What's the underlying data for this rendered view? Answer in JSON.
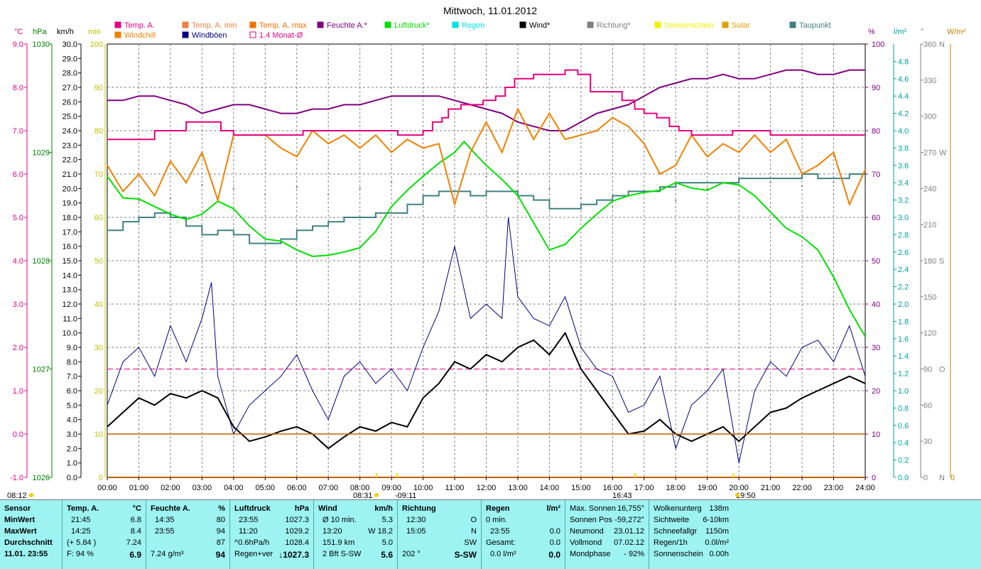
{
  "title": "Mittwoch, 11.01.2012",
  "legend": [
    {
      "label": "Temp. A.",
      "color": "#e6007e"
    },
    {
      "label": "Temp. A. min",
      "color": "#f08040"
    },
    {
      "label": "Temp. A. max",
      "color": "#f07000"
    },
    {
      "label": "Feuchte A.*",
      "color": "#800080"
    },
    {
      "label": "Luftdruck*",
      "color": "#00e000"
    },
    {
      "label": "Regen",
      "color": "#00e0e0"
    },
    {
      "label": "Wind*",
      "color": "#000000"
    },
    {
      "label": "Richtung*",
      "color": "#808080"
    },
    {
      "label": "Sonnenschein",
      "color": "#f0f000"
    },
    {
      "label": "Solar",
      "color": "#e0a000"
    },
    {
      "label": "Taupunkt",
      "color": "#408080"
    },
    {
      "label": "Windchill",
      "color": "#f08000"
    },
    {
      "label": "Windböen",
      "color": "#000080"
    },
    {
      "label": "1.4 Monat-Ø",
      "color": "#e6007e"
    }
  ],
  "axis_units": {
    "temp": "°C",
    "hpa": "hPa",
    "kmh": "km/h",
    "min": "min",
    "pct": "%",
    "rain": "l/m²",
    "deg": "°",
    "solar": "W/m²"
  },
  "axes": {
    "temp": [
      "9.0",
      "8.0",
      "7.0",
      "6.0",
      "5.0",
      "4.0",
      "3.0",
      "2.0",
      "1.0",
      "0.0",
      "-1.0"
    ],
    "hpa": [
      "1030",
      "1029",
      "1028",
      "1027",
      "1026"
    ],
    "kmh": [
      "30.0",
      "29.0",
      "28.0",
      "27.0",
      "26.0",
      "25.0",
      "24.0",
      "23.0",
      "22.0",
      "21.0",
      "20.0",
      "19.0",
      "18.0",
      "17.0",
      "16.0",
      "15.0",
      "14.0",
      "13.0",
      "12.0",
      "11.0",
      "10.0",
      "9.0",
      "8.0",
      "7.0",
      "6.0",
      "5.0",
      "4.0",
      "3.0",
      "2.0",
      "1.0",
      "0.0"
    ],
    "min": [
      "100",
      "90",
      "80",
      "70",
      "60",
      "50",
      "40",
      "30",
      "20",
      "10",
      "0"
    ],
    "pct": [
      "100",
      "90",
      "80",
      "70",
      "60",
      "50",
      "40",
      "30",
      "20",
      "10",
      "0"
    ],
    "rain": [
      "4.8",
      "4.6",
      "4.4",
      "4.2",
      "4.0",
      "3.8",
      "3.6",
      "3.4",
      "3.2",
      "3.0",
      "2.8",
      "2.6",
      "2.4",
      "2.2",
      "2.0",
      "1.8",
      "1.6",
      "1.4",
      "1.2",
      "1.0",
      "0.8",
      "0.6",
      "0.4",
      "0.2",
      "0.0"
    ],
    "deg": [
      "360",
      "330",
      "300",
      "270",
      "240",
      "210",
      "180",
      "150",
      "120",
      "90",
      "60",
      "30",
      "0"
    ],
    "deg_dir": {
      "360": "N",
      "270": "W",
      "180": "S",
      "90": "O",
      "0": "N"
    },
    "solar_zero": "0",
    "x": [
      "00:00",
      "01:00",
      "02:00",
      "03:00",
      "04:00",
      "05:00",
      "06:00",
      "07:00",
      "08:00",
      "09:00",
      "10:00",
      "11:00",
      "12:00",
      "13:00",
      "14:00",
      "15:00",
      "16:00",
      "17:00",
      "18:00",
      "19:00",
      "20:00",
      "21:00",
      "22:00",
      "23:00",
      "24:00"
    ]
  },
  "time_marks": {
    "sunrise": "08:12",
    "dawn": "08:31",
    "noon_mark": "09:11",
    "day": "16:43",
    "sunset": "19:50"
  },
  "chart_data": {
    "type": "line",
    "title": "Mittwoch, 11.01.2012",
    "x_unit": "hours",
    "series": [
      {
        "name": "Temp. A.",
        "unit": "°C",
        "color": "#e6007e",
        "x": [
          0,
          1.2,
          1.5,
          2.5,
          3.6,
          4.0,
          6.2,
          7.5,
          8.9,
          9.2,
          9.5,
          10.0,
          10.3,
          10.6,
          10.8,
          11.2,
          11.5,
          11.9,
          12.3,
          12.6,
          12.9,
          13.2,
          13.5,
          14.0,
          14.5,
          14.9,
          15.3,
          15.6,
          16.3,
          16.7,
          17.0,
          17.4,
          17.8,
          18.1,
          18.5,
          18.9,
          19.4,
          19.8,
          20.5,
          21.0,
          21.5,
          22.0,
          23.0,
          24.0
        ],
        "values": [
          6.8,
          6.8,
          7.0,
          7.2,
          7.0,
          6.9,
          7.0,
          7.0,
          7.0,
          6.9,
          6.9,
          7.0,
          7.2,
          7.3,
          7.5,
          7.6,
          7.6,
          7.7,
          7.8,
          8.0,
          8.2,
          8.2,
          8.3,
          8.3,
          8.4,
          8.3,
          7.9,
          7.9,
          7.7,
          7.5,
          7.4,
          7.3,
          7.1,
          7.0,
          6.9,
          6.9,
          6.9,
          7.0,
          7.0,
          6.9,
          6.9,
          6.9,
          6.9,
          6.9
        ]
      },
      {
        "name": "Feuchte A.*",
        "unit": "%",
        "color": "#800080",
        "x": [
          0,
          0.5,
          1.0,
          1.5,
          2.0,
          2.5,
          3.0,
          3.5,
          4.0,
          4.5,
          5.0,
          5.5,
          6.0,
          6.5,
          7.0,
          7.5,
          8.0,
          8.5,
          9.0,
          9.5,
          10.0,
          10.5,
          11.0,
          11.5,
          12.0,
          12.5,
          13.0,
          13.5,
          14.0,
          14.5,
          15.0,
          15.5,
          16.0,
          16.5,
          17.0,
          17.5,
          18.0,
          18.5,
          19.0,
          19.5,
          20.0,
          20.5,
          21.0,
          21.5,
          22.0,
          22.5,
          23.0,
          23.5,
          24.0
        ],
        "values": [
          87,
          87,
          88,
          88,
          87,
          86,
          84,
          85,
          86,
          86,
          85,
          84,
          84,
          85,
          85,
          86,
          86,
          87,
          88,
          88,
          88,
          88,
          87,
          86,
          85,
          84,
          82,
          81,
          80,
          80,
          82,
          84,
          85,
          86,
          88,
          90,
          91,
          92,
          92,
          93,
          92,
          92,
          93,
          94,
          94,
          93,
          93,
          94,
          94
        ]
      },
      {
        "name": "Luftdruck*",
        "unit": "hPa",
        "color": "#00e000",
        "x": [
          0,
          0.5,
          1.0,
          1.5,
          2.0,
          2.5,
          3.0,
          3.5,
          4.0,
          4.5,
          5.0,
          5.5,
          6.0,
          6.5,
          7.0,
          7.5,
          8.0,
          8.5,
          9.0,
          9.5,
          10.0,
          10.5,
          11.0,
          11.3,
          11.7,
          12.0,
          12.5,
          13.0,
          13.5,
          14.0,
          14.5,
          15.0,
          15.5,
          16.0,
          16.5,
          17.0,
          17.5,
          18.0,
          18.5,
          19.0,
          19.5,
          20.0,
          20.5,
          21.0,
          21.5,
          22.0,
          22.5,
          23.0,
          23.5,
          24.0
        ],
        "values": [
          1028.78,
          1028.58,
          1028.57,
          1028.5,
          1028.43,
          1028.38,
          1028.43,
          1028.55,
          1028.48,
          1028.32,
          1028.2,
          1028.18,
          1028.1,
          1028.04,
          1028.05,
          1028.08,
          1028.12,
          1028.27,
          1028.5,
          1028.65,
          1028.78,
          1028.9,
          1029.0,
          1029.1,
          1028.97,
          1028.88,
          1028.75,
          1028.6,
          1028.35,
          1028.1,
          1028.15,
          1028.3,
          1028.43,
          1028.55,
          1028.6,
          1028.63,
          1028.65,
          1028.72,
          1028.67,
          1028.65,
          1028.72,
          1028.7,
          1028.6,
          1028.45,
          1028.3,
          1028.22,
          1028.1,
          1027.85,
          1027.55,
          1027.3
        ]
      },
      {
        "name": "Taupunkt",
        "unit": "°C",
        "color": "#408080",
        "x": [
          0,
          0.5,
          1.0,
          1.5,
          2.0,
          2.5,
          3.0,
          3.5,
          4.0,
          4.5,
          5.0,
          5.5,
          6.0,
          6.5,
          7.0,
          7.5,
          8.0,
          8.5,
          9.0,
          9.5,
          10.0,
          10.5,
          11.0,
          11.5,
          12.0,
          12.5,
          13.0,
          13.5,
          14.0,
          14.5,
          15.0,
          15.5,
          16.0,
          16.5,
          17.0,
          17.5,
          18.0,
          18.5,
          19.0,
          19.5,
          20.0,
          20.5,
          21.0,
          21.5,
          22.0,
          22.5,
          23.0,
          23.5,
          24.0
        ],
        "values": [
          4.7,
          4.9,
          5.0,
          5.1,
          5.0,
          4.8,
          4.6,
          4.7,
          4.6,
          4.4,
          4.4,
          4.5,
          4.7,
          4.8,
          4.9,
          5.0,
          5.0,
          5.1,
          5.1,
          5.3,
          5.5,
          5.6,
          5.6,
          5.5,
          5.6,
          5.6,
          5.5,
          5.4,
          5.2,
          5.2,
          5.3,
          5.4,
          5.5,
          5.6,
          5.6,
          5.7,
          5.8,
          5.8,
          5.8,
          5.8,
          5.9,
          5.9,
          5.9,
          5.9,
          6.0,
          5.9,
          5.9,
          6.0,
          6.0
        ]
      },
      {
        "name": "Wind*",
        "unit": "km/h",
        "color": "#000000",
        "x": [
          0,
          0.5,
          1.0,
          1.5,
          2.0,
          2.5,
          3.0,
          3.5,
          4.0,
          4.5,
          5.0,
          5.5,
          6.0,
          6.5,
          7.0,
          7.5,
          8.0,
          8.5,
          9.0,
          9.5,
          10.0,
          10.5,
          11.0,
          11.5,
          12.0,
          12.5,
          13.0,
          13.5,
          14.0,
          14.5,
          15.0,
          15.5,
          16.0,
          16.5,
          17.0,
          17.5,
          18.0,
          18.5,
          19.0,
          19.5,
          20.0,
          20.5,
          21.0,
          21.5,
          22.0,
          22.5,
          23.0,
          23.5,
          24.0
        ],
        "values": [
          3.5,
          4.5,
          5.5,
          5.0,
          5.8,
          5.5,
          6.0,
          5.5,
          3.5,
          2.5,
          2.8,
          3.2,
          3.5,
          3.0,
          2.0,
          2.8,
          3.5,
          3.2,
          3.8,
          3.5,
          5.5,
          6.5,
          8.0,
          7.5,
          8.5,
          8.0,
          9.0,
          9.5,
          8.5,
          10.0,
          7.5,
          6.0,
          4.5,
          3.0,
          3.2,
          4.0,
          3.0,
          2.5,
          3.0,
          3.5,
          2.5,
          3.5,
          4.5,
          4.8,
          5.5,
          6.0,
          6.5,
          7.0,
          6.5
        ]
      },
      {
        "name": "Windböen",
        "unit": "km/h",
        "color": "#000080",
        "x": [
          0,
          0.5,
          1.0,
          1.5,
          2.0,
          2.5,
          3.0,
          3.3,
          3.5,
          4.0,
          4.5,
          5.0,
          5.5,
          6.0,
          6.5,
          7.0,
          7.5,
          8.0,
          8.5,
          9.0,
          9.5,
          10.0,
          10.5,
          11.0,
          11.5,
          12.0,
          12.5,
          12.7,
          13.0,
          13.5,
          14.0,
          14.5,
          15.0,
          15.5,
          16.0,
          16.5,
          17.0,
          17.5,
          18.0,
          18.5,
          19.0,
          19.5,
          20.0,
          20.5,
          21.0,
          21.5,
          22.0,
          22.5,
          23.0,
          23.5,
          24.0
        ],
        "values": [
          5.0,
          8.0,
          9.0,
          7.0,
          10.5,
          8.0,
          11.0,
          13.5,
          7.0,
          3.0,
          5.0,
          6.0,
          7.0,
          8.5,
          6.0,
          4.0,
          7.0,
          8.0,
          6.5,
          7.5,
          6.0,
          9.0,
          11.5,
          16.0,
          11.0,
          12.0,
          11.0,
          18.0,
          12.5,
          11.0,
          10.5,
          12.5,
          9.0,
          7.5,
          7.0,
          4.5,
          5.0,
          7.0,
          2.0,
          5.0,
          6.0,
          7.5,
          1.0,
          6.0,
          8.0,
          7.0,
          9.0,
          9.5,
          8.0,
          10.5,
          7.0
        ]
      },
      {
        "name": "Windchill",
        "unit": "°C",
        "color": "#f08000",
        "x": [
          0,
          0.5,
          1.0,
          1.5,
          2.0,
          2.5,
          3.0,
          3.5,
          4.0,
          4.5,
          5.0,
          5.5,
          6.0,
          6.5,
          7.0,
          7.5,
          8.0,
          8.5,
          9.0,
          9.5,
          10.0,
          10.5,
          11.0,
          11.5,
          12.0,
          12.5,
          13.0,
          13.5,
          14.0,
          14.5,
          15.0,
          15.5,
          16.0,
          16.5,
          17.0,
          17.5,
          18.0,
          18.5,
          19.0,
          19.5,
          20.0,
          20.5,
          21.0,
          21.5,
          22.0,
          22.5,
          23.0,
          23.5,
          24.0
        ],
        "values": [
          6.2,
          5.6,
          6.0,
          5.5,
          6.3,
          5.8,
          6.5,
          5.4,
          6.9,
          6.9,
          6.9,
          6.6,
          6.4,
          7.0,
          6.7,
          6.9,
          6.6,
          6.9,
          6.5,
          6.8,
          6.6,
          6.7,
          5.3,
          6.5,
          7.2,
          6.5,
          7.5,
          6.8,
          7.4,
          6.8,
          6.9,
          7.0,
          7.3,
          7.1,
          6.7,
          6.0,
          6.2,
          6.9,
          6.4,
          6.7,
          6.5,
          6.9,
          6.5,
          6.8,
          6.0,
          6.2,
          6.5,
          5.3,
          6.1
        ]
      },
      {
        "name": "Richtung*",
        "unit": "°",
        "color": "#808080",
        "x": [
          0,
          1,
          2,
          3,
          4,
          5,
          6,
          7,
          8,
          9,
          10,
          11,
          12,
          13,
          14,
          15,
          16,
          17,
          18,
          19,
          20,
          21,
          22,
          23,
          24
        ],
        "values": [
          236,
          230,
          232,
          243,
          240,
          235,
          241,
          235,
          240,
          245,
          243,
          252,
          250,
          246,
          240,
          232,
          225,
          238,
          230,
          240,
          238,
          245,
          242,
          245,
          240
        ]
      },
      {
        "name": "1.4 Monat-Ø",
        "unit": "°C",
        "color": "#e6007e",
        "x": [
          0,
          24
        ],
        "values": [
          1.5,
          1.5
        ]
      },
      {
        "name": "Solar",
        "unit": "W/m²",
        "color": "#e0a000",
        "x": [
          0,
          24
        ],
        "values": [
          0,
          0
        ]
      },
      {
        "name": "Regen",
        "unit": "l/m²",
        "color": "#00e0e0",
        "x": [
          0,
          24
        ],
        "values": [
          0.0,
          0.0
        ]
      }
    ]
  },
  "stats": {
    "col_sensor": {
      "header": "Sensor",
      "rows": [
        "MinWert",
        "MaxWert",
        "Durchschnitt",
        "11.01. 23:55"
      ]
    },
    "col_temp": {
      "header": "Temp. A.",
      "unit": "°C",
      "rows": [
        [
          "21:45",
          "6.8"
        ],
        [
          "14:25",
          "8.4"
        ],
        [
          "(+ 5.84 )",
          "7.24"
        ],
        [
          "F: 94 %",
          "6.9"
        ]
      ]
    },
    "col_hum": {
      "header": "Feuchte A.",
      "unit": "%",
      "rows": [
        [
          "14:35",
          "80"
        ],
        [
          "23:55",
          "94"
        ],
        [
          "",
          "87"
        ],
        [
          "7.24 g/m³",
          "94"
        ]
      ]
    },
    "col_press": {
      "header": "Luftdruck",
      "unit": "hPa",
      "rows": [
        [
          "23:55",
          "1027.3"
        ],
        [
          "11:20",
          "1029.2"
        ],
        [
          "^0.6hPa/h",
          "1028.4"
        ],
        [
          "Regen+ver",
          "↓1027.3"
        ]
      ]
    },
    "col_wind": {
      "header": "Wind",
      "unit": "km/h",
      "rows": [
        [
          "Ø 10 min.",
          "5.3"
        ],
        [
          "13:20",
          "W 18.2"
        ],
        [
          "151.9 km",
          "5.0"
        ],
        [
          "2 Bft S-SW",
          "5.6"
        ]
      ]
    },
    "col_dir": {
      "header": "Richtung",
      "rows": [
        [
          "12:30",
          "O"
        ],
        [
          "15:05",
          "N"
        ],
        [
          "",
          "SW"
        ],
        [
          "202 °",
          "S-SW"
        ]
      ]
    },
    "col_rain": {
      "header": "Regen",
      "unit": "l/m²",
      "rows": [
        [
          "0 min.",
          ""
        ],
        [
          "23:55",
          "0.0"
        ],
        [
          "Gesamt:",
          "0.0"
        ],
        [
          "0.0 l/m²",
          "0.0"
        ]
      ]
    },
    "col_sun": {
      "rows": [
        [
          "Max. Sonnen",
          "16,755°"
        ],
        [
          "Sonnen Pos",
          "-59,272°"
        ],
        [
          "Neumond",
          "23.01.12"
        ],
        [
          "Vollmond",
          "07.02.12"
        ],
        [
          "Mondphase",
          "- 92%"
        ]
      ]
    },
    "col_cloud": {
      "rows": [
        [
          "Wolkenunterg",
          "138m"
        ],
        [
          "Sichtweite",
          "6-10km"
        ],
        [
          "Schneefallgr",
          "1150m"
        ],
        [
          "Regen/1h",
          "0.0l/m²"
        ],
        [
          "Sonnenschein",
          "0.00h"
        ]
      ]
    }
  }
}
